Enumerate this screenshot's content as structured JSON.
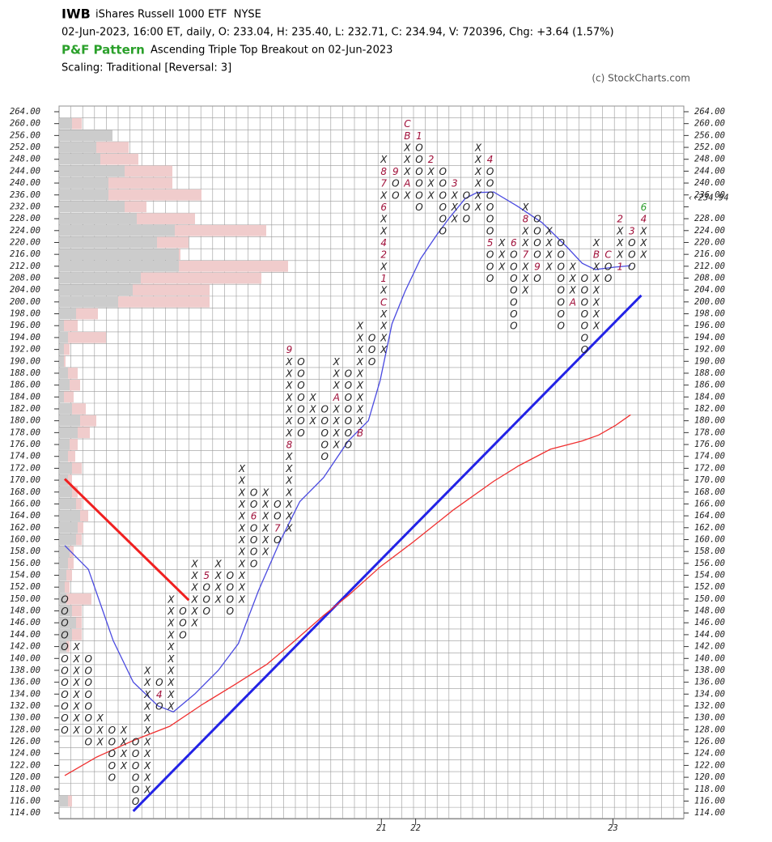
{
  "header": {
    "symbol": "IWB",
    "name": "iShares Russell 1000 ETF  NYSE",
    "quote": "02-Jun-2023, 16:00 ET, daily, O: 233.04, H: 235.40, L: 232.71, C: 234.94, V: 720396, Chg: +3.64 (1.57%)",
    "pattern_label": "P&F Pattern",
    "pattern": "Ascending Triple Top Breakout on 02-Jun-2023",
    "scaling": "Scaling: Traditional [Reversal: 3]",
    "copyright": "(c) StockCharts.com"
  },
  "chart_data": {
    "type": "pnf",
    "yticks": [
      {
        "value": 264,
        "label": "264.00"
      },
      {
        "value": 260,
        "label": "260.00"
      },
      {
        "value": 256,
        "label": "256.00"
      },
      {
        "value": 252,
        "label": "252.00"
      },
      {
        "value": 248,
        "label": "248.00"
      },
      {
        "value": 244,
        "label": "244.00"
      },
      {
        "value": 240,
        "label": "240.00"
      },
      {
        "value": 236,
        "label": "236.00"
      },
      {
        "value": 232,
        "label": "232.00"
      },
      {
        "value": 228,
        "label": "228.00"
      },
      {
        "value": 224,
        "label": "224.00"
      },
      {
        "value": 220,
        "label": "220.00"
      },
      {
        "value": 216,
        "label": "216.00"
      },
      {
        "value": 212,
        "label": "212.00"
      },
      {
        "value": 208,
        "label": "208.00"
      },
      {
        "value": 204,
        "label": "204.00"
      },
      {
        "value": 200,
        "label": "200.00"
      },
      {
        "value": 198,
        "label": "198.00"
      },
      {
        "value": 196,
        "label": "196.00"
      },
      {
        "value": 194,
        "label": "194.00"
      },
      {
        "value": 192,
        "label": "192.00"
      },
      {
        "value": 190,
        "label": "190.00"
      },
      {
        "value": 188,
        "label": "188.00"
      },
      {
        "value": 186,
        "label": "186.00"
      },
      {
        "value": 184,
        "label": "184.00"
      },
      {
        "value": 182,
        "label": "182.00"
      },
      {
        "value": 180,
        "label": "180.00"
      },
      {
        "value": 178,
        "label": "178.00"
      },
      {
        "value": 176,
        "label": "176.00"
      },
      {
        "value": 174,
        "label": "174.00"
      },
      {
        "value": 172,
        "label": "172.00"
      },
      {
        "value": 170,
        "label": "170.00"
      },
      {
        "value": 168,
        "label": "168.00"
      },
      {
        "value": 166,
        "label": "166.00"
      },
      {
        "value": 164,
        "label": "164.00"
      },
      {
        "value": 162,
        "label": "162.00"
      },
      {
        "value": 160,
        "label": "160.00"
      },
      {
        "value": 158,
        "label": "158.00"
      },
      {
        "value": 156,
        "label": "156.00"
      },
      {
        "value": 154,
        "label": "154.00"
      },
      {
        "value": 152,
        "label": "152.00"
      },
      {
        "value": 150,
        "label": "150.00"
      },
      {
        "value": 148,
        "label": "148.00"
      },
      {
        "value": 146,
        "label": "146.00"
      },
      {
        "value": 144,
        "label": "144.00"
      },
      {
        "value": 142,
        "label": "142.00"
      },
      {
        "value": 140,
        "label": "140.00"
      },
      {
        "value": 138,
        "label": "138.00"
      },
      {
        "value": 136,
        "label": "136.00"
      },
      {
        "value": 134,
        "label": "134.00"
      },
      {
        "value": 132,
        "label": "132.00"
      },
      {
        "value": 130,
        "label": "130.00"
      },
      {
        "value": 128,
        "label": "128.00"
      },
      {
        "value": 126,
        "label": "126.00"
      },
      {
        "value": 124,
        "label": "124.00"
      },
      {
        "value": 122,
        "label": "122.00"
      },
      {
        "value": 120,
        "label": "120.00"
      },
      {
        "value": 118,
        "label": "118.00"
      },
      {
        "value": 116,
        "label": "116.00"
      },
      {
        "value": 114,
        "label": "114.00"
      }
    ],
    "highlight_tick": 232,
    "highlight_color": "#c0103a",
    "last": {
      "value": 234.94,
      "label": "‹‹234.94"
    },
    "columns": [
      {
        "type": "O",
        "low": 128,
        "high": 150
      },
      {
        "type": "X",
        "low": 128,
        "high": 142
      },
      {
        "type": "O",
        "low": 126,
        "high": 140
      },
      {
        "type": "X",
        "low": 126,
        "high": 130
      },
      {
        "type": "O",
        "low": 120,
        "high": 128
      },
      {
        "type": "X",
        "low": 122,
        "high": 128
      },
      {
        "type": "O",
        "low": 116,
        "high": 126
      },
      {
        "type": "X",
        "low": 118,
        "high": 138
      },
      {
        "type": "O",
        "low": 132,
        "high": 136
      },
      {
        "type": "X",
        "low": 132,
        "high": 150
      },
      {
        "type": "O",
        "low": 144,
        "high": 148
      },
      {
        "type": "X",
        "low": 146,
        "high": 156
      },
      {
        "type": "O",
        "low": 148,
        "high": 154
      },
      {
        "type": "X",
        "low": 150,
        "high": 156
      },
      {
        "type": "O",
        "low": 148,
        "high": 154
      },
      {
        "type": "X",
        "low": 150,
        "high": 172
      },
      {
        "type": "O",
        "low": 156,
        "high": 168
      },
      {
        "type": "X",
        "low": 158,
        "high": 168
      },
      {
        "type": "O",
        "low": 160,
        "high": 166
      },
      {
        "type": "X",
        "low": 162,
        "high": 192
      },
      {
        "type": "O",
        "low": 178,
        "high": 190
      },
      {
        "type": "X",
        "low": 180,
        "high": 184
      },
      {
        "type": "O",
        "low": 174,
        "high": 182
      },
      {
        "type": "X",
        "low": 176,
        "high": 190
      },
      {
        "type": "O",
        "low": 176,
        "high": 188
      },
      {
        "type": "X",
        "low": 178,
        "high": 196
      },
      {
        "type": "O",
        "low": 190,
        "high": 194
      },
      {
        "type": "X",
        "low": 192,
        "high": 248
      },
      {
        "type": "O",
        "low": 236,
        "high": 244
      },
      {
        "type": "X",
        "low": 236,
        "high": 260
      },
      {
        "type": "O",
        "low": 232,
        "high": 256
      },
      {
        "type": "X",
        "low": 236,
        "high": 248
      },
      {
        "type": "O",
        "low": 224,
        "high": 244
      },
      {
        "type": "X",
        "low": 228,
        "high": 240
      },
      {
        "type": "O",
        "low": 228,
        "high": 236
      },
      {
        "type": "X",
        "low": 232,
        "high": 252
      },
      {
        "type": "O",
        "low": 208,
        "high": 248
      },
      {
        "type": "X",
        "low": 212,
        "high": 220
      },
      {
        "type": "O",
        "low": 196,
        "high": 220
      },
      {
        "type": "X",
        "low": 204,
        "high": 232
      },
      {
        "type": "O",
        "low": 208,
        "high": 228
      },
      {
        "type": "X",
        "low": 212,
        "high": 224
      },
      {
        "type": "O",
        "low": 196,
        "high": 220
      },
      {
        "type": "X",
        "low": 200,
        "high": 212
      },
      {
        "type": "O",
        "low": 192,
        "high": 208
      },
      {
        "type": "X",
        "low": 196,
        "high": 220
      },
      {
        "type": "O",
        "low": 208,
        "high": 216
      },
      {
        "type": "X",
        "low": 212,
        "high": 228
      },
      {
        "type": "O",
        "low": 212,
        "high": 224
      },
      {
        "type": "X",
        "low": 216,
        "high": 232
      }
    ],
    "month_color": "#a0103a",
    "months": [
      {
        "col": 8,
        "value": 134,
        "label": "4"
      },
      {
        "col": 12,
        "value": 154,
        "label": "5"
      },
      {
        "col": 16,
        "value": 164,
        "label": "6"
      },
      {
        "col": 18,
        "value": 162,
        "label": "7"
      },
      {
        "col": 19,
        "value": 176,
        "label": "8"
      },
      {
        "col": 19,
        "value": 192,
        "label": "9"
      },
      {
        "col": 23,
        "value": 184,
        "label": "A"
      },
      {
        "col": 25,
        "value": 178,
        "label": "B"
      },
      {
        "col": 27,
        "value": 200,
        "label": "C"
      },
      {
        "col": 27,
        "value": 208,
        "label": "1"
      },
      {
        "col": 27,
        "value": 216,
        "label": "2"
      },
      {
        "col": 27,
        "value": 220,
        "label": "4"
      },
      {
        "col": 27,
        "value": 232,
        "label": "6"
      },
      {
        "col": 27,
        "value": 240,
        "label": "7"
      },
      {
        "col": 27,
        "value": 244,
        "label": "8"
      },
      {
        "col": 28,
        "value": 244,
        "label": "9"
      },
      {
        "col": 29,
        "value": 240,
        "label": "A"
      },
      {
        "col": 29,
        "value": 256,
        "label": "B"
      },
      {
        "col": 29,
        "value": 260,
        "label": "C"
      },
      {
        "col": 30,
        "value": 256,
        "label": "1"
      },
      {
        "col": 31,
        "value": 248,
        "label": "2"
      },
      {
        "col": 33,
        "value": 240,
        "label": "3"
      },
      {
        "col": 36,
        "value": 248,
        "label": "4"
      },
      {
        "col": 36,
        "value": 220,
        "label": "5"
      },
      {
        "col": 38,
        "value": 220,
        "label": "6"
      },
      {
        "col": 39,
        "value": 216,
        "label": "7"
      },
      {
        "col": 39,
        "value": 228,
        "label": "8"
      },
      {
        "col": 40,
        "value": 212,
        "label": "9"
      },
      {
        "col": 43,
        "value": 200,
        "label": "A"
      },
      {
        "col": 45,
        "value": 216,
        "label": "B"
      },
      {
        "col": 46,
        "value": 216,
        "label": "C"
      },
      {
        "col": 47,
        "value": 212,
        "label": "1"
      },
      {
        "col": 47,
        "value": 228,
        "label": "2"
      },
      {
        "col": 48,
        "value": 224,
        "label": "3"
      },
      {
        "col": 49,
        "value": 228,
        "label": "4"
      },
      {
        "col": 49,
        "value": 232,
        "label": "6",
        "color": "#2a9d2a"
      }
    ],
    "moving_averages": [
      {
        "color": "#4a4ae0",
        "points": [
          [
            0,
            159
          ],
          [
            2,
            155
          ],
          [
            4.1,
            143
          ],
          [
            5.8,
            136
          ],
          [
            7.9,
            132
          ],
          [
            9.2,
            131
          ],
          [
            11,
            134
          ],
          [
            13,
            138
          ],
          [
            14.7,
            142.5
          ],
          [
            16.4,
            151.4
          ],
          [
            18.2,
            159.6
          ],
          [
            19.9,
            166.4
          ],
          [
            21.9,
            170.4
          ],
          [
            24,
            176.6
          ],
          [
            25.7,
            180
          ],
          [
            26.7,
            186.8
          ],
          [
            27.7,
            196.3
          ],
          [
            28.8,
            203.5
          ],
          [
            30.1,
            214.4
          ],
          [
            31.5,
            222.6
          ],
          [
            32.5,
            228
          ],
          [
            33.9,
            234.8
          ],
          [
            34.9,
            236.8
          ],
          [
            36.3,
            237
          ],
          [
            38.4,
            232
          ],
          [
            40.4,
            226.7
          ],
          [
            42.5,
            218.5
          ],
          [
            43.8,
            213
          ],
          [
            44.9,
            210.9
          ],
          [
            46.6,
            211.7
          ],
          [
            47.9,
            212.2
          ]
        ]
      },
      {
        "color": "#f03030",
        "points": [
          [
            0,
            120.3
          ],
          [
            2.7,
            123.4
          ],
          [
            5.8,
            126.2
          ],
          [
            8.9,
            128.6
          ],
          [
            11.6,
            132.2
          ],
          [
            14.4,
            135.6
          ],
          [
            17.1,
            139
          ],
          [
            19.2,
            142.5
          ],
          [
            21.9,
            147.2
          ],
          [
            24,
            150.6
          ],
          [
            26.7,
            155.4
          ],
          [
            29.5,
            159.6
          ],
          [
            32.9,
            165
          ],
          [
            36.3,
            169.8
          ],
          [
            38.4,
            172.4
          ],
          [
            41.1,
            175.2
          ],
          [
            43.8,
            176.6
          ],
          [
            45.2,
            177.6
          ],
          [
            46.6,
            179.2
          ],
          [
            47.9,
            181
          ]
        ]
      }
    ],
    "trendlines": [
      {
        "color": "#2323e6",
        "from": [
          5.8,
          114.3
        ],
        "to": [
          48.8,
          202.2
        ]
      },
      {
        "color": "#f02020",
        "from": [
          0,
          170.2
        ],
        "to": [
          10.5,
          149.8
        ]
      }
    ],
    "volume_by_price": {
      "up_color": "#cccccc",
      "down_color": "#f0cccc",
      "prices": [
        260,
        256,
        252,
        248,
        244,
        240,
        236,
        232,
        228,
        224,
        220,
        216,
        212,
        208,
        204,
        200,
        198,
        196,
        194,
        192,
        190,
        188,
        186,
        184,
        182,
        180,
        178,
        176,
        174,
        172,
        170,
        168,
        166,
        164,
        162,
        160,
        158,
        156,
        154,
        152,
        150,
        148,
        146,
        144,
        142,
        116
      ],
      "up": [
        15,
        65,
        45,
        50,
        80,
        60,
        60,
        80,
        95,
        142,
        120,
        147,
        147,
        100,
        90,
        72,
        20,
        5,
        10,
        5,
        5,
        10,
        12,
        5,
        15,
        25,
        22,
        12,
        10,
        15,
        10,
        15,
        20,
        25,
        22,
        20,
        12,
        10,
        8,
        6,
        8,
        15,
        20,
        15,
        8,
        10
      ],
      "down": [
        12,
        0,
        40,
        47,
        59,
        79,
        115,
        27,
        72,
        113,
        39,
        2,
        135,
        149,
        95,
        113,
        27,
        17,
        47,
        7,
        2,
        12,
        13,
        12,
        17,
        20,
        15,
        10,
        9,
        12,
        5,
        7,
        7,
        10,
        7,
        7,
        5,
        7,
        7,
        6,
        31,
        12,
        7,
        12,
        4,
        5
      ]
    },
    "year_marks": [
      {
        "col": 26.8,
        "label": "21"
      },
      {
        "col": 29.7,
        "label": "22"
      },
      {
        "col": 46.4,
        "label": "23"
      }
    ]
  }
}
